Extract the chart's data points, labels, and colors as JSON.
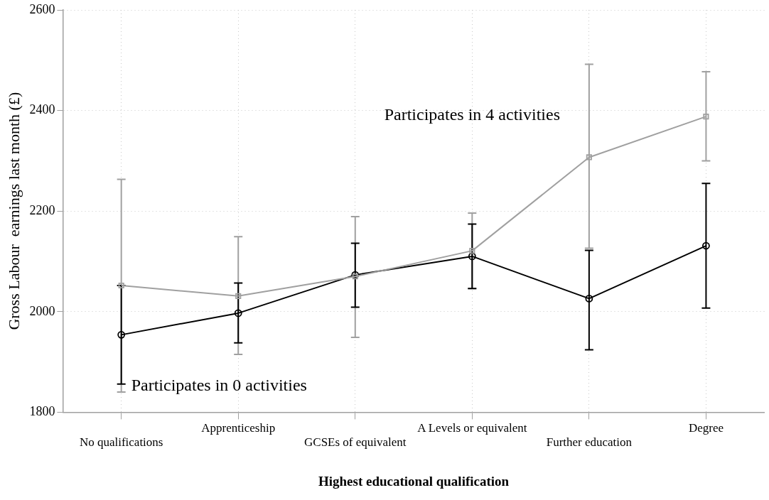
{
  "chart_data": {
    "type": "line",
    "xlabel": "Highest educational qualification",
    "ylabel": "Gross Labour  earnings last month (£)",
    "categories": [
      "No qualifications",
      "Apprenticeship",
      "GCSEs of equivalent",
      "A Levels or equivalent",
      "Further education",
      "Degree"
    ],
    "series": [
      {
        "name": "Participates in 4 activities",
        "color": "#a0a0a0",
        "marker": "square",
        "values": [
          2052,
          2031,
          2070,
          2121,
          2307,
          2388
        ],
        "errors": [
          [
            1840,
            2263
          ],
          [
            1915,
            2149
          ],
          [
            1949,
            2189
          ],
          [
            2046,
            2196
          ],
          [
            2126,
            2492
          ],
          [
            2300,
            2477
          ]
        ]
      },
      {
        "name": "Participates in 0 activities",
        "color": "#000000",
        "marker": "circle",
        "values": [
          1954,
          1997,
          2073,
          2110,
          2026,
          2131
        ],
        "errors": [
          [
            1856,
            2052
          ],
          [
            1938,
            2057
          ],
          [
            2009,
            2136
          ],
          [
            2046,
            2174
          ],
          [
            1924,
            2122
          ],
          [
            2007,
            2255
          ]
        ]
      }
    ],
    "ylim": [
      1800,
      2600
    ],
    "yticks": [
      1800,
      2000,
      2200,
      2400,
      2600
    ],
    "grid": true,
    "legend": false,
    "line_style": "solid"
  }
}
